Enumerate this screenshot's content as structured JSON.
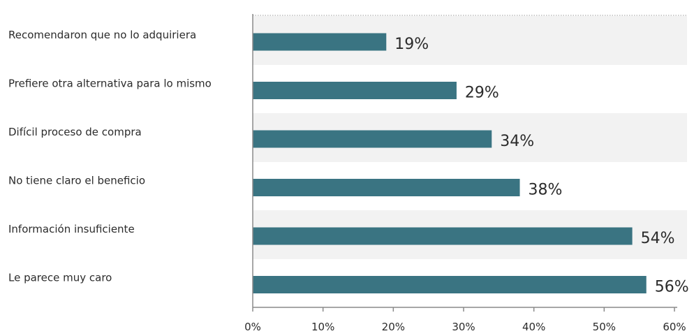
{
  "chart_data": {
    "type": "bar",
    "orientation": "horizontal",
    "categories": [
      "Recomendaron que no lo adquiriera",
      "Prefiere otra alternativa para lo mismo",
      "Difícil proceso de compra",
      "No tiene claro el beneficio",
      "Información insuficiente",
      "Le parece muy caro"
    ],
    "values": [
      19,
      29,
      34,
      38,
      54,
      56
    ],
    "value_labels": [
      "19%",
      "29%",
      "34%",
      "38%",
      "54%",
      "56%"
    ],
    "xlim": [
      0,
      60
    ],
    "x_ticks": [
      0,
      10,
      20,
      30,
      40,
      50,
      60
    ],
    "x_tick_labels": [
      "0%",
      "10%",
      "20%",
      "30%",
      "40%",
      "50%",
      "60%"
    ],
    "title": "",
    "xlabel": "",
    "ylabel": "",
    "bar_color": "#3a7482",
    "band_color": "#f2f2f2",
    "legend": "none",
    "grid": false
  }
}
